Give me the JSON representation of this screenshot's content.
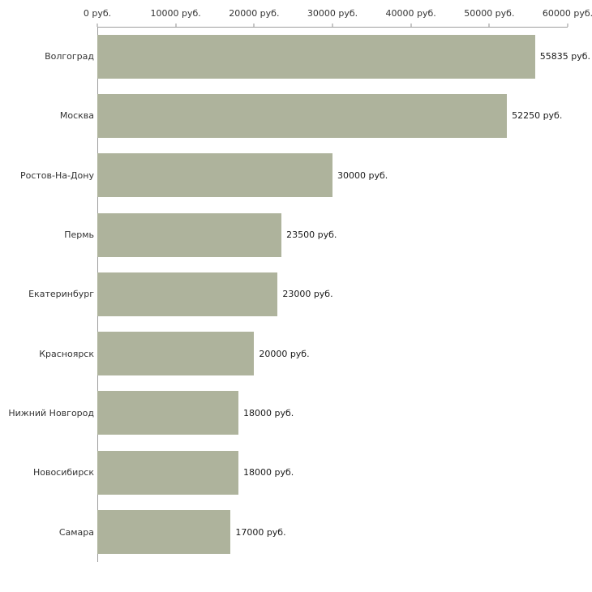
{
  "chart_data": {
    "type": "bar",
    "orientation": "horizontal",
    "title": "",
    "xlabel": "",
    "ylabel": "",
    "categories": [
      "Волгоград",
      "Москва",
      "Ростов-На-Дону",
      "Пермь",
      "Екатеринбург",
      "Красноярск",
      "Нижний Новгород",
      "Новосибирск",
      "Самара"
    ],
    "values": [
      55835,
      52250,
      30000,
      23500,
      23000,
      20000,
      18000,
      18000,
      17000
    ],
    "value_labels": [
      "55835 руб.",
      "52250 руб.",
      "30000 руб.",
      "23500 руб.",
      "23000 руб.",
      "20000 руб.",
      "18000 руб.",
      "18000 руб.",
      "17000 руб."
    ],
    "x_ticks": [
      0,
      10000,
      20000,
      30000,
      40000,
      50000,
      60000
    ],
    "x_tick_labels": [
      "0 руб.",
      "10000 руб.",
      "20000 руб.",
      "30000 руб.",
      "40000 руб.",
      "50000 руб.",
      "60000 руб."
    ],
    "xlim": [
      0,
      60000
    ],
    "grid": false,
    "legend": "none",
    "axis_position": "top",
    "colors": {
      "bar": "#aeb39c",
      "axis": "#9e9e9e",
      "text": "#333333",
      "background": "#ffffff"
    }
  }
}
